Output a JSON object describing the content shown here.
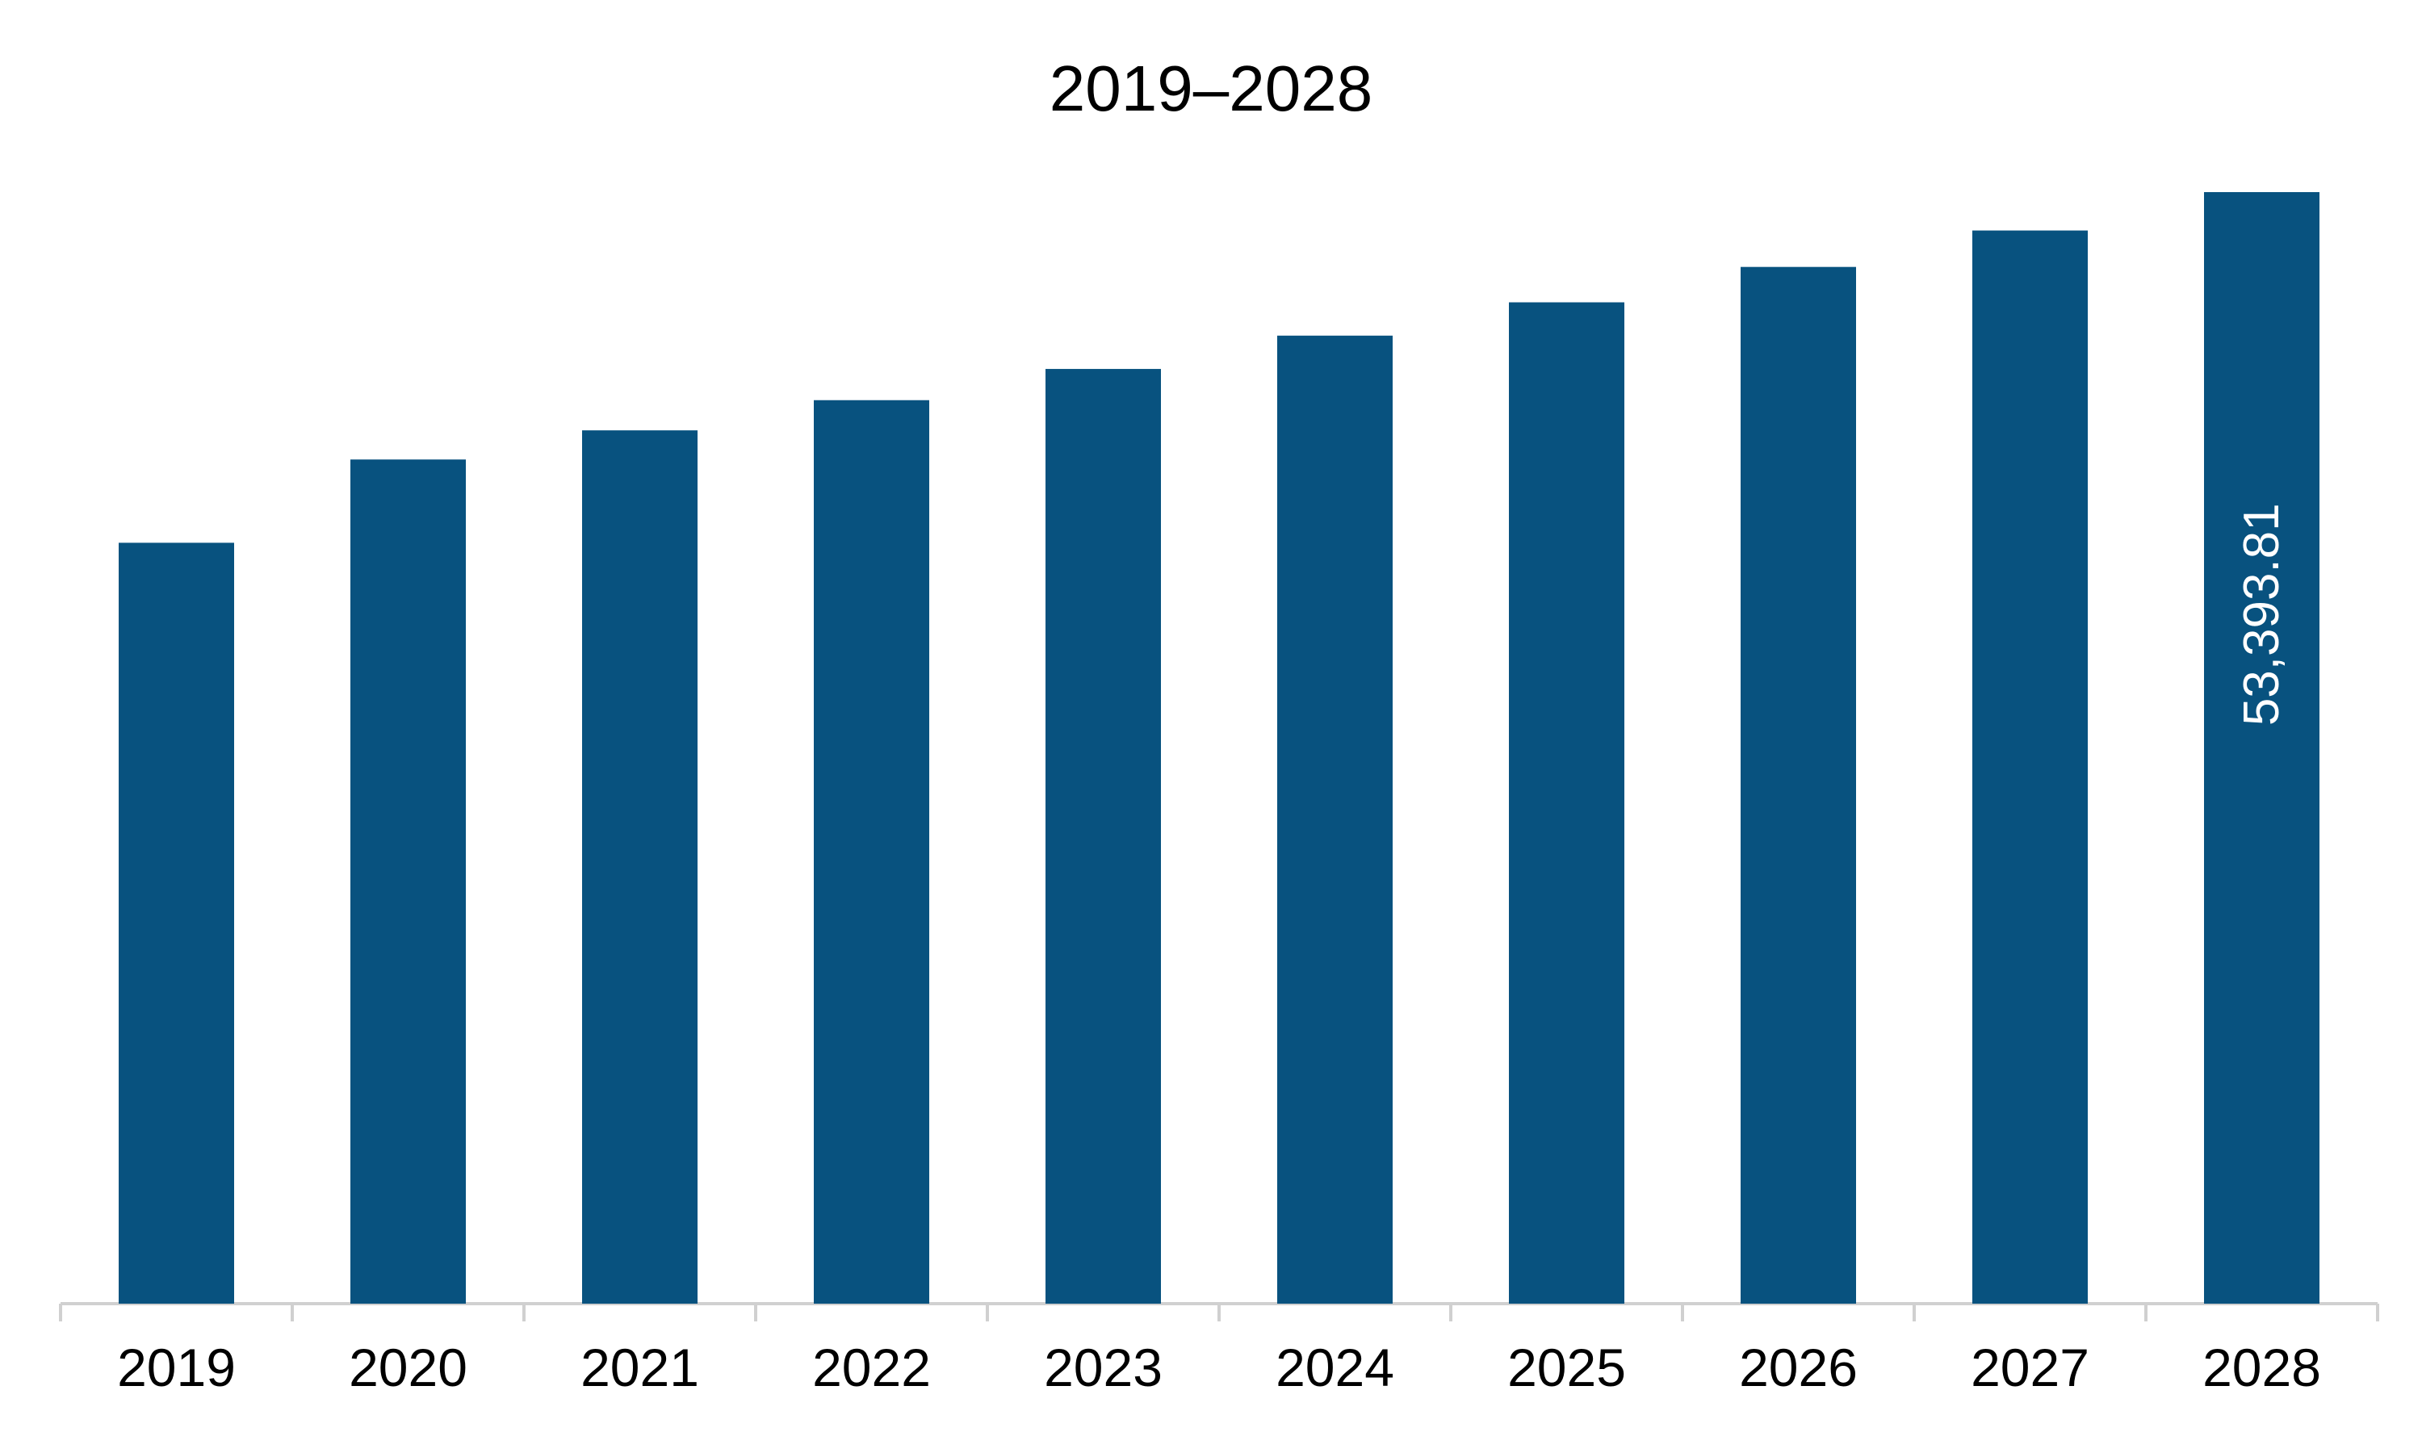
{
  "chart_data": {
    "type": "bar",
    "title": "2019–2028",
    "xlabel": "",
    "ylabel": "",
    "categories": [
      "2019",
      "2020",
      "2021",
      "2022",
      "2023",
      "2024",
      "2025",
      "2026",
      "2027",
      "2028"
    ],
    "values": [
      36550,
      40550,
      41950,
      43400,
      44900,
      46500,
      48100,
      49800,
      51550,
      53393.81
    ],
    "data_labels": [
      "",
      "",
      "",
      "",
      "",
      "",
      "",
      "",
      "",
      "53,393.81"
    ],
    "ylim": [
      0,
      56000
    ],
    "grid": false,
    "legend": "none",
    "bar_color": "#08527f",
    "axis_color": "#d0d0d0"
  }
}
